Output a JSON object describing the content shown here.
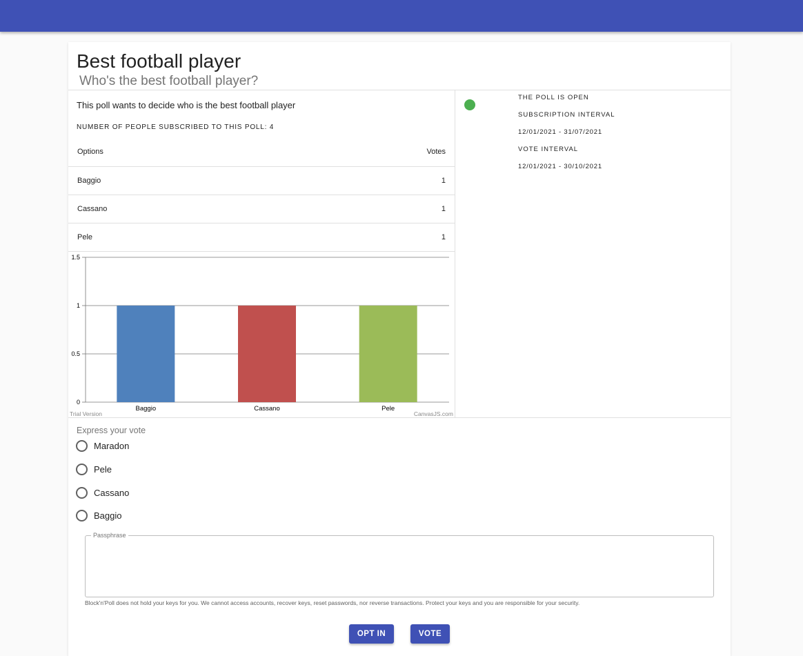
{
  "poll": {
    "title": "Best football player",
    "subtitle": "Who's the best football player?",
    "description": "This poll wants to decide who is the best football player",
    "subscribed": "NUMBER OF PEOPLE SUBSCRIBED TO THIS POLL: 4"
  },
  "table": {
    "col_options": "Options",
    "col_votes": "Votes",
    "rows": [
      {
        "option": "Baggio",
        "votes": "1"
      },
      {
        "option": "Cassano",
        "votes": "1"
      },
      {
        "option": "Pele",
        "votes": "1"
      }
    ]
  },
  "status": {
    "open": "THE POLL IS OPEN",
    "sub_label": "SUBSCRIPTION INTERVAL",
    "sub_value": "12/01/2021 - 31/07/2021",
    "vote_label": "VOTE INTERVAL",
    "vote_value": "12/01/2021 - 30/10/2021",
    "dot_color": "#4caf50"
  },
  "chart_data": {
    "type": "bar",
    "categories": [
      "Baggio",
      "Cassano",
      "Pele"
    ],
    "values": [
      1,
      1,
      1
    ],
    "colors": [
      "#4f81bc",
      "#c0504e",
      "#9bbb58"
    ],
    "ylim": [
      0,
      1.5
    ],
    "yticks": [
      "0",
      "0.5",
      "1",
      "1.5"
    ],
    "title": "",
    "xlabel": "",
    "ylabel": "",
    "grid": true,
    "watermark_left": "Trial Version",
    "watermark_right": "CanvasJS.com"
  },
  "vote": {
    "label": "Express your vote",
    "options": [
      "Maradon",
      "Pele",
      "Cassano",
      "Baggio"
    ]
  },
  "passphrase": {
    "legend": "Passphrase",
    "helper": "Block'n'Poll does not hold your keys for you. We cannot access accounts, recover keys, reset passwords, nor reverse transactions. Protect your keys and you are responsible for your security."
  },
  "buttons": {
    "opt_in": "OPT IN",
    "vote": "VOTE"
  },
  "theme": {
    "primary": "#3f51b5"
  }
}
